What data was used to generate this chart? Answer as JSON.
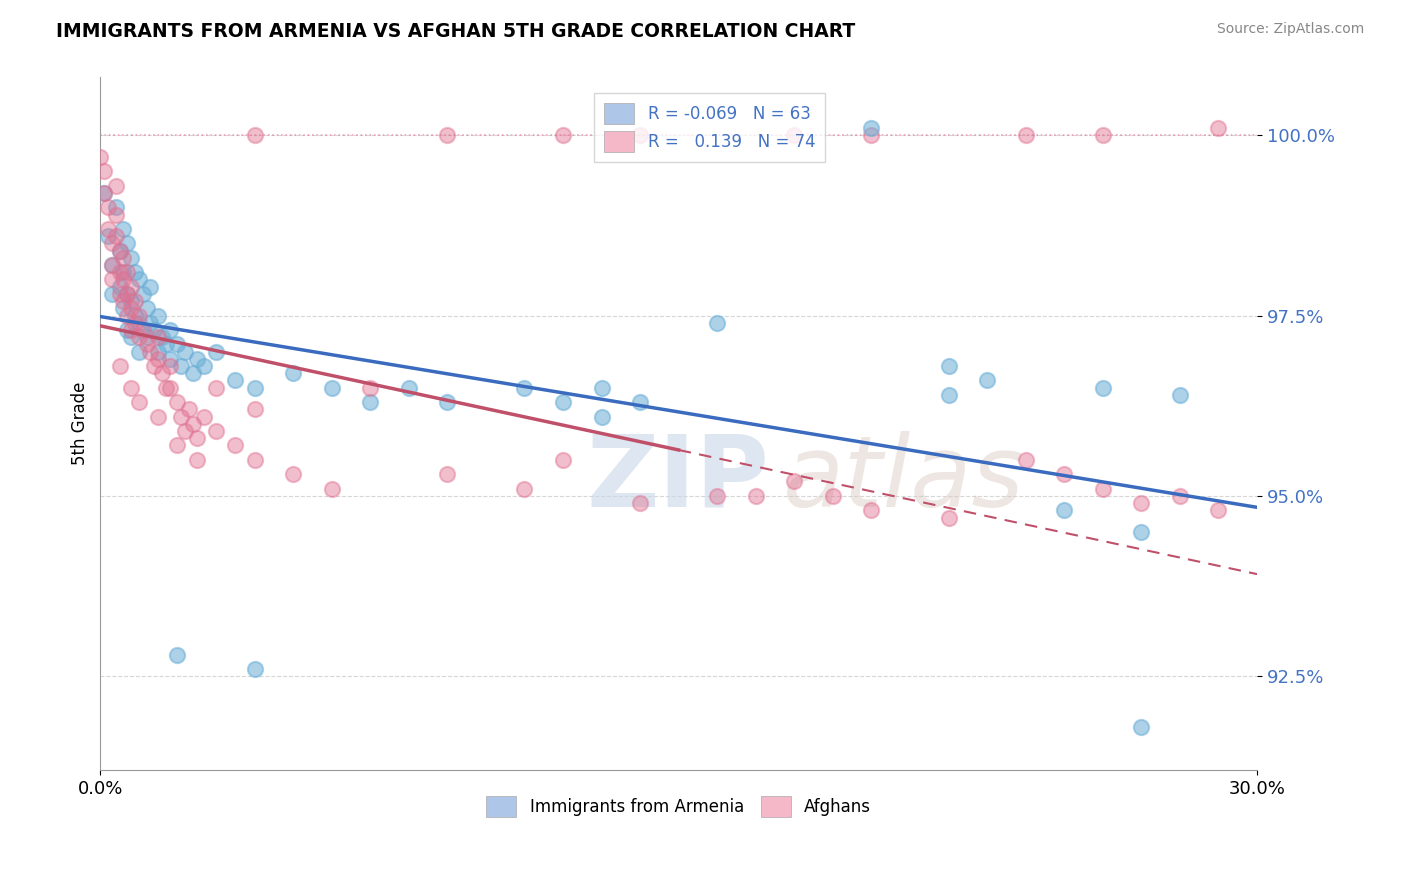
{
  "title": "IMMIGRANTS FROM ARMENIA VS AFGHAN 5TH GRADE CORRELATION CHART",
  "source_text": "Source: ZipAtlas.com",
  "ylabel": "5th Grade",
  "x_min": 0.0,
  "x_max": 0.3,
  "y_min": 91.2,
  "y_max": 100.8,
  "y_tick_values": [
    92.5,
    95.0,
    97.5,
    100.0
  ],
  "watermark_zip": "ZIP",
  "watermark_atlas": "atlas",
  "legend_label_blue": "R = -0.069   N = 63",
  "legend_label_pink": "R =   0.139   N = 74",
  "legend_bottom_labels": [
    "Immigrants from Armenia",
    "Afghans"
  ],
  "blue_color": "#6baed6",
  "pink_color": "#e07090",
  "trend_blue_color": "#3a6bbf",
  "trend_pink_color": "#c0506a",
  "legend_blue_patch": "#aec6e8",
  "legend_pink_patch": "#f4b8c8",
  "blue_scatter": [
    [
      0.001,
      99.2
    ],
    [
      0.002,
      98.6
    ],
    [
      0.003,
      98.2
    ],
    [
      0.003,
      97.8
    ],
    [
      0.004,
      99.0
    ],
    [
      0.005,
      98.4
    ],
    [
      0.005,
      97.9
    ],
    [
      0.006,
      98.7
    ],
    [
      0.006,
      98.1
    ],
    [
      0.006,
      97.6
    ],
    [
      0.007,
      98.5
    ],
    [
      0.007,
      97.8
    ],
    [
      0.007,
      97.3
    ],
    [
      0.008,
      98.3
    ],
    [
      0.008,
      97.7
    ],
    [
      0.008,
      97.2
    ],
    [
      0.009,
      98.1
    ],
    [
      0.009,
      97.5
    ],
    [
      0.01,
      98.0
    ],
    [
      0.01,
      97.4
    ],
    [
      0.01,
      97.0
    ],
    [
      0.011,
      97.8
    ],
    [
      0.012,
      97.6
    ],
    [
      0.012,
      97.2
    ],
    [
      0.013,
      97.9
    ],
    [
      0.013,
      97.4
    ],
    [
      0.014,
      97.3
    ],
    [
      0.015,
      97.5
    ],
    [
      0.015,
      97.0
    ],
    [
      0.016,
      97.2
    ],
    [
      0.017,
      97.1
    ],
    [
      0.018,
      97.3
    ],
    [
      0.018,
      96.9
    ],
    [
      0.02,
      97.1
    ],
    [
      0.021,
      96.8
    ],
    [
      0.022,
      97.0
    ],
    [
      0.024,
      96.7
    ],
    [
      0.025,
      96.9
    ],
    [
      0.027,
      96.8
    ],
    [
      0.03,
      97.0
    ],
    [
      0.035,
      96.6
    ],
    [
      0.04,
      96.5
    ],
    [
      0.05,
      96.7
    ],
    [
      0.06,
      96.5
    ],
    [
      0.07,
      96.3
    ],
    [
      0.08,
      96.5
    ],
    [
      0.09,
      96.3
    ],
    [
      0.11,
      96.5
    ],
    [
      0.12,
      96.3
    ],
    [
      0.13,
      96.5
    ],
    [
      0.14,
      96.3
    ],
    [
      0.16,
      97.4
    ],
    [
      0.22,
      96.8
    ],
    [
      0.22,
      96.4
    ],
    [
      0.23,
      96.6
    ],
    [
      0.25,
      94.8
    ],
    [
      0.26,
      96.5
    ],
    [
      0.27,
      94.5
    ],
    [
      0.28,
      96.4
    ],
    [
      0.02,
      92.8
    ],
    [
      0.04,
      92.6
    ],
    [
      0.13,
      96.1
    ],
    [
      0.27,
      91.8
    ]
  ],
  "pink_scatter": [
    [
      0.0,
      99.7
    ],
    [
      0.001,
      99.5
    ],
    [
      0.001,
      99.2
    ],
    [
      0.002,
      99.0
    ],
    [
      0.002,
      98.7
    ],
    [
      0.003,
      98.5
    ],
    [
      0.003,
      98.2
    ],
    [
      0.003,
      98.0
    ],
    [
      0.004,
      99.3
    ],
    [
      0.004,
      98.9
    ],
    [
      0.004,
      98.6
    ],
    [
      0.005,
      98.4
    ],
    [
      0.005,
      98.1
    ],
    [
      0.005,
      97.8
    ],
    [
      0.006,
      98.3
    ],
    [
      0.006,
      98.0
    ],
    [
      0.006,
      97.7
    ],
    [
      0.007,
      98.1
    ],
    [
      0.007,
      97.8
    ],
    [
      0.007,
      97.5
    ],
    [
      0.008,
      97.9
    ],
    [
      0.008,
      97.6
    ],
    [
      0.008,
      97.3
    ],
    [
      0.009,
      97.7
    ],
    [
      0.009,
      97.4
    ],
    [
      0.01,
      97.5
    ],
    [
      0.01,
      97.2
    ],
    [
      0.011,
      97.3
    ],
    [
      0.012,
      97.1
    ],
    [
      0.013,
      97.0
    ],
    [
      0.014,
      96.8
    ],
    [
      0.015,
      97.2
    ],
    [
      0.015,
      96.9
    ],
    [
      0.016,
      96.7
    ],
    [
      0.017,
      96.5
    ],
    [
      0.018,
      96.8
    ],
    [
      0.018,
      96.5
    ],
    [
      0.02,
      96.3
    ],
    [
      0.021,
      96.1
    ],
    [
      0.022,
      95.9
    ],
    [
      0.023,
      96.2
    ],
    [
      0.024,
      96.0
    ],
    [
      0.025,
      95.8
    ],
    [
      0.027,
      96.1
    ],
    [
      0.03,
      95.9
    ],
    [
      0.035,
      95.7
    ],
    [
      0.04,
      95.5
    ],
    [
      0.05,
      95.3
    ],
    [
      0.06,
      95.1
    ],
    [
      0.07,
      96.5
    ],
    [
      0.09,
      95.3
    ],
    [
      0.11,
      95.1
    ],
    [
      0.12,
      95.5
    ],
    [
      0.14,
      94.9
    ],
    [
      0.16,
      95.0
    ],
    [
      0.17,
      95.0
    ],
    [
      0.18,
      95.2
    ],
    [
      0.19,
      95.0
    ],
    [
      0.2,
      94.8
    ],
    [
      0.22,
      94.7
    ],
    [
      0.24,
      95.5
    ],
    [
      0.25,
      95.3
    ],
    [
      0.26,
      95.1
    ],
    [
      0.27,
      94.9
    ],
    [
      0.28,
      95.0
    ],
    [
      0.29,
      94.8
    ],
    [
      0.005,
      96.8
    ],
    [
      0.008,
      96.5
    ],
    [
      0.01,
      96.3
    ],
    [
      0.015,
      96.1
    ],
    [
      0.02,
      95.7
    ],
    [
      0.025,
      95.5
    ],
    [
      0.03,
      96.5
    ],
    [
      0.04,
      96.2
    ]
  ],
  "pink_top_dots_x": [
    0.04,
    0.09,
    0.12,
    0.14,
    0.18,
    0.2,
    0.24,
    0.26,
    0.29
  ],
  "pink_top_dots_y": [
    100.0,
    100.0,
    100.0,
    100.0,
    100.0,
    100.0,
    100.0,
    100.0,
    100.1
  ],
  "blue_top_dot_x": [
    0.2
  ],
  "blue_top_dot_y": [
    100.1
  ]
}
